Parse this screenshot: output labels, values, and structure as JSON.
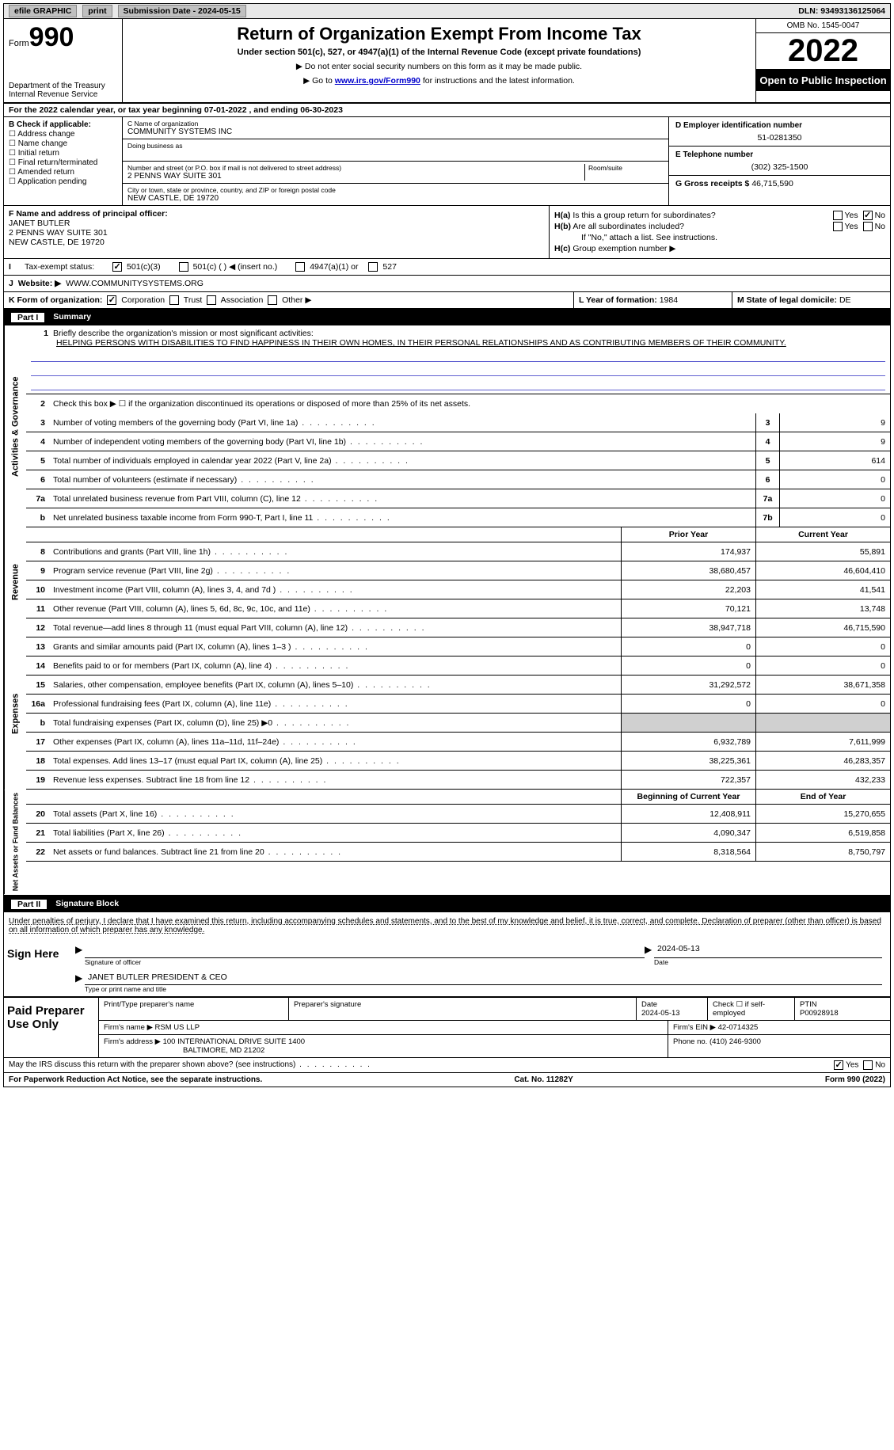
{
  "topbar": {
    "efile": "efile GRAPHIC",
    "print": "print",
    "submission": "Submission Date - 2024-05-15",
    "dln": "DLN: 93493136125064"
  },
  "header": {
    "form_label": "Form",
    "form_num": "990",
    "dept": "Department of the Treasury",
    "irs": "Internal Revenue Service",
    "title": "Return of Organization Exempt From Income Tax",
    "subtitle": "Under section 501(c), 527, or 4947(a)(1) of the Internal Revenue Code (except private foundations)",
    "note1": "Do not enter social security numbers on this form as it may be made public.",
    "note2_pre": "Go to ",
    "note2_link": "www.irs.gov/Form990",
    "note2_post": " for instructions and the latest information.",
    "omb": "OMB No. 1545-0047",
    "year": "2022",
    "inspect": "Open to Public Inspection"
  },
  "period": "For the 2022 calendar year, or tax year beginning 07-01-2022    , and ending 06-30-2023",
  "section_b": {
    "title": "B Check if applicable:",
    "items": [
      "Address change",
      "Name change",
      "Initial return",
      "Final return/terminated",
      "Amended return",
      "Application pending"
    ]
  },
  "section_c": {
    "name_lbl": "C Name of organization",
    "name": "COMMUNITY SYSTEMS INC",
    "dba_lbl": "Doing business as",
    "addr_lbl": "Number and street (or P.O. box if mail is not delivered to street address)",
    "room_lbl": "Room/suite",
    "addr": "2 PENNS WAY SUITE 301",
    "city_lbl": "City or town, state or province, country, and ZIP or foreign postal code",
    "city": "NEW CASTLE, DE  19720"
  },
  "section_d": {
    "ein_lbl": "D Employer identification number",
    "ein": "51-0281350",
    "tel_lbl": "E Telephone number",
    "tel": "(302) 325-1500",
    "gross_lbl": "G Gross receipts $",
    "gross": "46,715,590"
  },
  "section_f": {
    "lbl": "F Name and address of principal officer:",
    "name": "JANET BUTLER",
    "addr1": "2 PENNS WAY SUITE 301",
    "addr2": "NEW CASTLE, DE  19720"
  },
  "section_h": {
    "ha": "Is this a group return for subordinates?",
    "hb": "Are all subordinates included?",
    "hb_note": "If \"No,\" attach a list. See instructions.",
    "hc": "Group exemption number ▶"
  },
  "section_i": {
    "lbl": "Tax-exempt status:",
    "opts": [
      "501(c)(3)",
      "501(c) (  ) ◀ (insert no.)",
      "4947(a)(1) or",
      "527"
    ]
  },
  "section_j": {
    "lbl": "Website: ▶",
    "val": "WWW.COMMUNITYSYSTEMS.ORG"
  },
  "section_k": {
    "lbl": "K Form of organization:",
    "opts": [
      "Corporation",
      "Trust",
      "Association",
      "Other ▶"
    ]
  },
  "section_l": {
    "lbl": "L Year of formation:",
    "val": "1984"
  },
  "section_m": {
    "lbl": "M State of legal domicile:",
    "val": "DE"
  },
  "part1": {
    "label": "Part I",
    "title": "Summary"
  },
  "mission": {
    "lbl": "Briefly describe the organization's mission or most significant activities:",
    "txt": "HELPING PERSONS WITH DISABILITIES TO FIND HAPPINESS IN THEIR OWN HOMES, IN THEIR PERSONAL RELATIONSHIPS AND AS CONTRIBUTING MEMBERS OF THEIR COMMUNITY."
  },
  "line2": "Check this box ▶ ☐ if the organization discontinued its operations or disposed of more than 25% of its net assets.",
  "activities": [
    {
      "n": "3",
      "t": "Number of voting members of the governing body (Part VI, line 1a)",
      "b": "3",
      "v": "9"
    },
    {
      "n": "4",
      "t": "Number of independent voting members of the governing body (Part VI, line 1b)",
      "b": "4",
      "v": "9"
    },
    {
      "n": "5",
      "t": "Total number of individuals employed in calendar year 2022 (Part V, line 2a)",
      "b": "5",
      "v": "614"
    },
    {
      "n": "6",
      "t": "Total number of volunteers (estimate if necessary)",
      "b": "6",
      "v": "0"
    },
    {
      "n": "7a",
      "t": "Total unrelated business revenue from Part VIII, column (C), line 12",
      "b": "7a",
      "v": "0"
    },
    {
      "n": "b",
      "t": "Net unrelated business taxable income from Form 990-T, Part I, line 11",
      "b": "7b",
      "v": "0"
    }
  ],
  "col_headers": {
    "prior": "Prior Year",
    "current": "Current Year",
    "beg": "Beginning of Current Year",
    "end": "End of Year"
  },
  "revenue": [
    {
      "n": "8",
      "t": "Contributions and grants (Part VIII, line 1h)",
      "p": "174,937",
      "c": "55,891"
    },
    {
      "n": "9",
      "t": "Program service revenue (Part VIII, line 2g)",
      "p": "38,680,457",
      "c": "46,604,410"
    },
    {
      "n": "10",
      "t": "Investment income (Part VIII, column (A), lines 3, 4, and 7d )",
      "p": "22,203",
      "c": "41,541"
    },
    {
      "n": "11",
      "t": "Other revenue (Part VIII, column (A), lines 5, 6d, 8c, 9c, 10c, and 11e)",
      "p": "70,121",
      "c": "13,748"
    },
    {
      "n": "12",
      "t": "Total revenue—add lines 8 through 11 (must equal Part VIII, column (A), line 12)",
      "p": "38,947,718",
      "c": "46,715,590"
    }
  ],
  "expenses": [
    {
      "n": "13",
      "t": "Grants and similar amounts paid (Part IX, column (A), lines 1–3 )",
      "p": "0",
      "c": "0"
    },
    {
      "n": "14",
      "t": "Benefits paid to or for members (Part IX, column (A), line 4)",
      "p": "0",
      "c": "0"
    },
    {
      "n": "15",
      "t": "Salaries, other compensation, employee benefits (Part IX, column (A), lines 5–10)",
      "p": "31,292,572",
      "c": "38,671,358"
    },
    {
      "n": "16a",
      "t": "Professional fundraising fees (Part IX, column (A), line 11e)",
      "p": "0",
      "c": "0"
    },
    {
      "n": "b",
      "t": "Total fundraising expenses (Part IX, column (D), line 25) ▶0",
      "p": "",
      "c": "",
      "shaded": true
    },
    {
      "n": "17",
      "t": "Other expenses (Part IX, column (A), lines 11a–11d, 11f–24e)",
      "p": "6,932,789",
      "c": "7,611,999"
    },
    {
      "n": "18",
      "t": "Total expenses. Add lines 13–17 (must equal Part IX, column (A), line 25)",
      "p": "38,225,361",
      "c": "46,283,357"
    },
    {
      "n": "19",
      "t": "Revenue less expenses. Subtract line 18 from line 12",
      "p": "722,357",
      "c": "432,233"
    }
  ],
  "netassets": [
    {
      "n": "20",
      "t": "Total assets (Part X, line 16)",
      "p": "12,408,911",
      "c": "15,270,655"
    },
    {
      "n": "21",
      "t": "Total liabilities (Part X, line 26)",
      "p": "4,090,347",
      "c": "6,519,858"
    },
    {
      "n": "22",
      "t": "Net assets or fund balances. Subtract line 21 from line 20",
      "p": "8,318,564",
      "c": "8,750,797"
    }
  ],
  "part2": {
    "label": "Part II",
    "title": "Signature Block"
  },
  "penalties": "Under penalties of perjury, I declare that I have examined this return, including accompanying schedules and statements, and to the best of my knowledge and belief, it is true, correct, and complete. Declaration of preparer (other than officer) is based on all information of which preparer has any knowledge.",
  "sign": {
    "here": "Sign Here",
    "sig_lbl": "Signature of officer",
    "date": "2024-05-13",
    "date_lbl": "Date",
    "name": "JANET BUTLER  PRESIDENT & CEO",
    "name_lbl": "Type or print name and title",
    "paid": "Paid Preparer Use Only",
    "prep_name_lbl": "Print/Type preparer's name",
    "prep_sig_lbl": "Preparer's signature",
    "prep_date_lbl": "Date",
    "prep_date": "2024-05-13",
    "self_lbl": "Check ☐ if self-employed",
    "ptin_lbl": "PTIN",
    "ptin": "P00928918",
    "firm_lbl": "Firm's name    ▶",
    "firm": "RSM US LLP",
    "ein_lbl": "Firm's EIN ▶",
    "ein": "42-0714325",
    "addr_lbl": "Firm's address ▶",
    "addr1": "100 INTERNATIONAL DRIVE SUITE 1400",
    "addr2": "BALTIMORE, MD  21202",
    "phone_lbl": "Phone no.",
    "phone": "(410) 246-9300"
  },
  "discuss": "May the IRS discuss this return with the preparer shown above? (see instructions)",
  "footer": {
    "left": "For Paperwork Reduction Act Notice, see the separate instructions.",
    "mid": "Cat. No. 11282Y",
    "right": "Form 990 (2022)"
  },
  "side_labels": {
    "act": "Activities & Governance",
    "rev": "Revenue",
    "exp": "Expenses",
    "net": "Net Assets or Fund Balances"
  }
}
